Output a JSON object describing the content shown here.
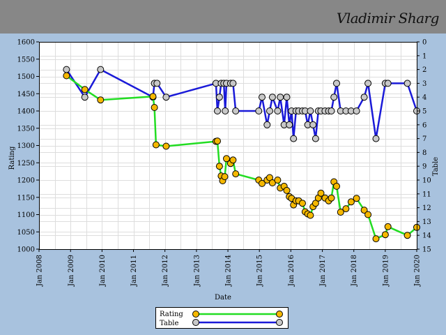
{
  "header": {
    "player_name": "Vladimir Sharg"
  },
  "colors": {
    "page_bg": "#a8c2de",
    "header_bg": "#878787",
    "rating_line": "#22dd22",
    "rating_marker": "#f5b800",
    "table_line": "#1a1ad8",
    "table_marker": "#c8c8c8",
    "grid": "#dddddd"
  },
  "chart_data": {
    "type": "line",
    "xlabel": "Date",
    "ylabel": "Rating",
    "y2label": "Table",
    "xlim": [
      "2008-01-01",
      "2020-01-01"
    ],
    "ylim": [
      1000,
      1600
    ],
    "y2lim": [
      0,
      15
    ],
    "y2_inverted": true,
    "x_ticks": [
      "Jan 2008",
      "Jan 2009",
      "Jan 2010",
      "Jan 2011",
      "Jan 2012",
      "Jan 2013",
      "Jan 2014",
      "Jan 2015",
      "Jan 2016",
      "Jan 2017",
      "Jan 2018",
      "Jan 2019",
      "Jan 2020"
    ],
    "y_ticks": [
      1000,
      1050,
      1100,
      1150,
      1200,
      1250,
      1300,
      1350,
      1400,
      1450,
      1500,
      1550,
      1600
    ],
    "y2_ticks": [
      0,
      1,
      2,
      3,
      4,
      5,
      6,
      7,
      8,
      9,
      10,
      11,
      12,
      13,
      14,
      15
    ],
    "grid": true,
    "legend_position": "bottom-center",
    "series": [
      {
        "name": "Rating",
        "axis": "left",
        "points": [
          [
            "2008-11-15",
            1502
          ],
          [
            "2009-06-15",
            1462
          ],
          [
            "2009-12-15",
            1432
          ],
          [
            "2011-08-15",
            1442
          ],
          [
            "2011-09-01",
            1410
          ],
          [
            "2011-09-20",
            1302
          ],
          [
            "2012-01-15",
            1298
          ],
          [
            "2013-08-15",
            1312
          ],
          [
            "2013-09-01",
            1313
          ],
          [
            "2013-09-25",
            1240
          ],
          [
            "2013-10-15",
            1212
          ],
          [
            "2013-11-01",
            1198
          ],
          [
            "2013-11-25",
            1210
          ],
          [
            "2013-12-15",
            1262
          ],
          [
            "2014-02-01",
            1248
          ],
          [
            "2014-03-01",
            1258
          ],
          [
            "2014-04-01",
            1218
          ],
          [
            "2014-12-25",
            1200
          ],
          [
            "2015-02-01",
            1190
          ],
          [
            "2015-04-01",
            1200
          ],
          [
            "2015-05-01",
            1207
          ],
          [
            "2015-06-01",
            1192
          ],
          [
            "2015-08-01",
            1200
          ],
          [
            "2015-09-01",
            1177
          ],
          [
            "2015-10-15",
            1182
          ],
          [
            "2015-11-15",
            1170
          ],
          [
            "2015-12-15",
            1152
          ],
          [
            "2016-01-10",
            1147
          ],
          [
            "2016-02-01",
            1128
          ],
          [
            "2016-03-01",
            1140
          ],
          [
            "2016-04-01",
            1140
          ],
          [
            "2016-05-15",
            1133
          ],
          [
            "2016-06-15",
            1108
          ],
          [
            "2016-07-15",
            1102
          ],
          [
            "2016-08-15",
            1098
          ],
          [
            "2016-09-15",
            1123
          ],
          [
            "2016-10-15",
            1133
          ],
          [
            "2016-11-15",
            1148
          ],
          [
            "2016-12-15",
            1162
          ],
          [
            "2017-02-01",
            1148
          ],
          [
            "2017-03-15",
            1140
          ],
          [
            "2017-04-15",
            1148
          ],
          [
            "2017-05-15",
            1195
          ],
          [
            "2017-06-15",
            1182
          ],
          [
            "2017-08-01",
            1107
          ],
          [
            "2017-10-01",
            1117
          ],
          [
            "2017-12-01",
            1137
          ],
          [
            "2018-02-01",
            1147
          ],
          [
            "2018-05-01",
            1113
          ],
          [
            "2018-06-15",
            1100
          ],
          [
            "2018-09-15",
            1030
          ],
          [
            "2019-01-01",
            1042
          ],
          [
            "2019-02-01",
            1065
          ],
          [
            "2019-09-15",
            1040
          ],
          [
            "2020-01-01",
            1063
          ]
        ]
      },
      {
        "name": "Table",
        "axis": "right",
        "points": [
          [
            "2008-11-15",
            2
          ],
          [
            "2009-06-15",
            4
          ],
          [
            "2009-12-15",
            2
          ],
          [
            "2011-08-15",
            4
          ],
          [
            "2011-09-01",
            3
          ],
          [
            "2011-10-01",
            3
          ],
          [
            "2012-01-15",
            4
          ],
          [
            "2013-08-15",
            3
          ],
          [
            "2013-09-01",
            5
          ],
          [
            "2013-09-25",
            4
          ],
          [
            "2013-10-15",
            3
          ],
          [
            "2013-11-15",
            3
          ],
          [
            "2013-12-01",
            5
          ],
          [
            "2013-12-15",
            3
          ],
          [
            "2014-02-01",
            3
          ],
          [
            "2014-03-01",
            3
          ],
          [
            "2014-04-01",
            5
          ],
          [
            "2014-12-25",
            5
          ],
          [
            "2015-02-01",
            4
          ],
          [
            "2015-04-01",
            6
          ],
          [
            "2015-05-01",
            5
          ],
          [
            "2015-06-01",
            4
          ],
          [
            "2015-08-01",
            5
          ],
          [
            "2015-09-01",
            4
          ],
          [
            "2015-10-15",
            6
          ],
          [
            "2015-11-15",
            4
          ],
          [
            "2015-12-15",
            6
          ],
          [
            "2016-01-10",
            5
          ],
          [
            "2016-02-01",
            7
          ],
          [
            "2016-03-01",
            5
          ],
          [
            "2016-04-01",
            5
          ],
          [
            "2016-05-15",
            5
          ],
          [
            "2016-06-15",
            5
          ],
          [
            "2016-07-15",
            6
          ],
          [
            "2016-08-15",
            5
          ],
          [
            "2016-09-15",
            6
          ],
          [
            "2016-10-15",
            7
          ],
          [
            "2016-11-15",
            5
          ],
          [
            "2016-12-15",
            5
          ],
          [
            "2017-02-01",
            5
          ],
          [
            "2017-03-15",
            5
          ],
          [
            "2017-04-15",
            5
          ],
          [
            "2017-05-15",
            4
          ],
          [
            "2017-06-15",
            3
          ],
          [
            "2017-08-01",
            5
          ],
          [
            "2017-10-01",
            5
          ],
          [
            "2017-12-01",
            5
          ],
          [
            "2018-02-01",
            5
          ],
          [
            "2018-05-01",
            4
          ],
          [
            "2018-06-15",
            3
          ],
          [
            "2018-09-15",
            7
          ],
          [
            "2019-01-01",
            3
          ],
          [
            "2019-02-01",
            3
          ],
          [
            "2019-09-15",
            3
          ],
          [
            "2020-01-01",
            5
          ]
        ]
      }
    ]
  }
}
